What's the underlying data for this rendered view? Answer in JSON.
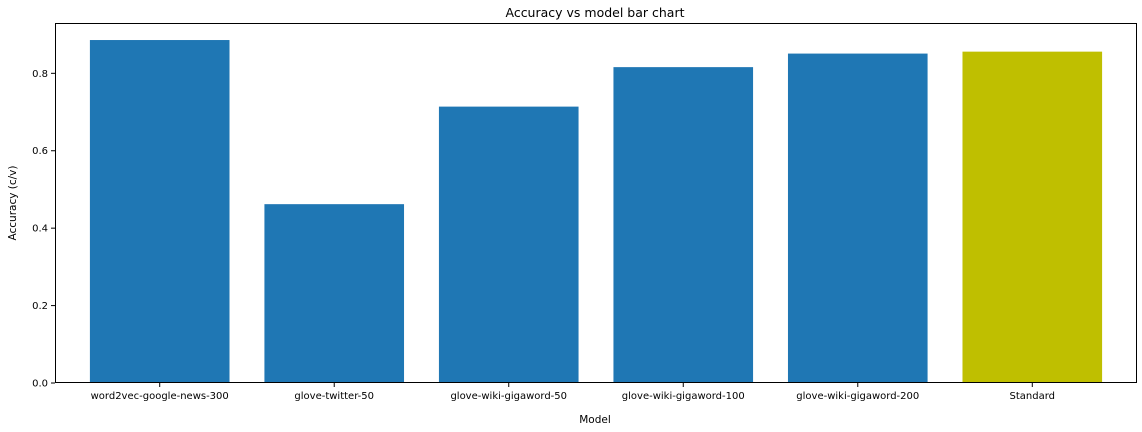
{
  "chart_data": {
    "type": "bar",
    "title": "Accuracy vs model bar chart",
    "xlabel": "Model",
    "ylabel": "Accuracy (c/v)",
    "categories": [
      "word2vec-google-news-300",
      "glove-twitter-50",
      "glove-wiki-gigaword-50",
      "glove-wiki-gigaword-100",
      "glove-wiki-gigaword-200",
      "Standard"
    ],
    "values": [
      0.886,
      0.462,
      0.714,
      0.816,
      0.851,
      0.856
    ],
    "colors": [
      "#1f77b4",
      "#1f77b4",
      "#1f77b4",
      "#1f77b4",
      "#1f77b4",
      "#bfbf00"
    ],
    "ylim": [
      0,
      0.93
    ],
    "yticks": [
      0.0,
      0.2,
      0.4,
      0.6,
      0.8
    ],
    "ytick_labels": [
      "0.0",
      "0.2",
      "0.4",
      "0.6",
      "0.8"
    ],
    "grid": false,
    "legend": false
  }
}
